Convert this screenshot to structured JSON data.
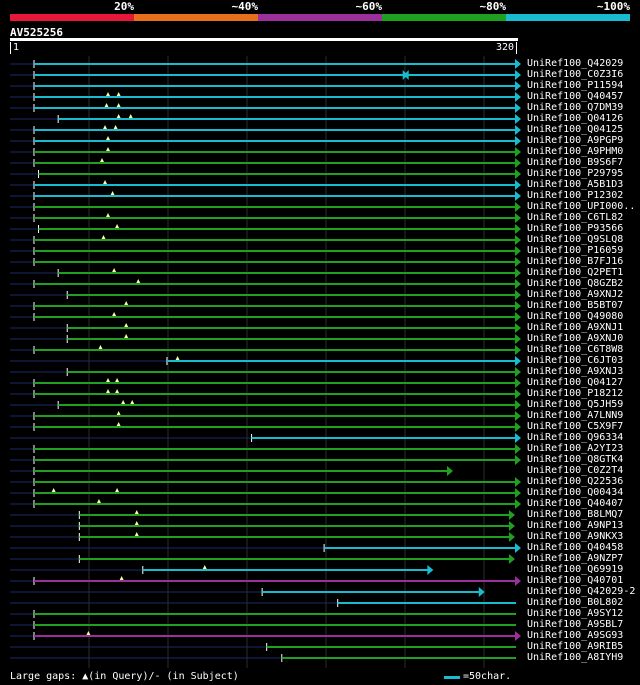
{
  "legend": {
    "labels": [
      "20%",
      "~40%",
      "~60%",
      "~80%",
      "~100%"
    ],
    "colors": [
      "#e5183a",
      "#e8701c",
      "#9b2f9c",
      "#20a020",
      "#17bcd0"
    ]
  },
  "query": {
    "name": "AV525256",
    "start_label": "1",
    "end_label": "320",
    "length": 320
  },
  "colors": {
    "cyan": "#17bcd0",
    "green": "#20a020",
    "purple": "#9b2f9c",
    "gap": "#1b2a66",
    "grid": "#2b2b2b",
    "marker": "#fff9a0"
  },
  "hits": [
    {
      "label": "UniRef100_Q42029",
      "color": "cyan",
      "q_start": 1,
      "end": 320,
      "dots": [],
      "arrow": true
    },
    {
      "label": "UniRef100_C0Z3I6",
      "color": "cyan",
      "q_start": 1,
      "end": 320,
      "dots": [],
      "arrow": true,
      "extra": "double-arrow"
    },
    {
      "label": "UniRef100_P11594",
      "color": "cyan",
      "q_start": 1,
      "end": 320,
      "dots": [],
      "arrow": true
    },
    {
      "label": "UniRef100_Q40457",
      "color": "cyan",
      "q_start": 1,
      "end": 320,
      "dots": [
        50,
        57
      ],
      "arrow": true
    },
    {
      "label": "UniRef100_Q7DM39",
      "color": "cyan",
      "q_start": 1,
      "end": 320,
      "dots": [
        49,
        57
      ],
      "arrow": true
    },
    {
      "label": "UniRef100_Q04126",
      "color": "cyan",
      "q_start": 17,
      "end": 320,
      "dots": [
        57,
        65
      ],
      "arrow": true
    },
    {
      "label": "UniRef100_Q04125",
      "color": "cyan",
      "q_start": 1,
      "end": 320,
      "dots": [
        48,
        55
      ],
      "arrow": true
    },
    {
      "label": "UniRef100_A9PGP9",
      "color": "cyan",
      "q_start": 1,
      "end": 320,
      "dots": [
        50
      ],
      "arrow": true
    },
    {
      "label": "UniRef100_A9PHM0",
      "color": "green",
      "q_start": 1,
      "end": 320,
      "dots": [
        50
      ],
      "arrow": true
    },
    {
      "label": "UniRef100_B9S6F7",
      "color": "green",
      "q_start": 1,
      "end": 320,
      "dots": [
        46
      ],
      "arrow": true
    },
    {
      "label": "UniRef100_P29795",
      "color": "green",
      "q_start": 4,
      "end": 320,
      "dots": [],
      "arrow": true
    },
    {
      "label": "UniRef100_A5B1D3",
      "color": "cyan",
      "q_start": 1,
      "end": 320,
      "dots": [
        48
      ],
      "arrow": true
    },
    {
      "label": "UniRef100_P12302",
      "color": "cyan",
      "q_start": 1,
      "end": 320,
      "dots": [
        53
      ],
      "arrow": true
    },
    {
      "label": "UniRef100_UPI000..",
      "color": "green",
      "q_start": 1,
      "end": 320,
      "dots": [],
      "arrow": true
    },
    {
      "label": "UniRef100_C6TL82",
      "color": "green",
      "q_start": 1,
      "end": 320,
      "dots": [
        50
      ],
      "arrow": true
    },
    {
      "label": "UniRef100_P93566",
      "color": "green",
      "q_start": 4,
      "end": 320,
      "dots": [
        56
      ],
      "arrow": true
    },
    {
      "label": "UniRef100_Q9SLQ8",
      "color": "green",
      "q_start": 1,
      "end": 320,
      "dots": [
        47
      ],
      "arrow": true
    },
    {
      "label": "UniRef100_P16059",
      "color": "green",
      "q_start": 1,
      "end": 320,
      "dots": [],
      "arrow": true
    },
    {
      "label": "UniRef100_B7FJ16",
      "color": "green",
      "q_start": 1,
      "end": 320,
      "dots": [],
      "arrow": true
    },
    {
      "label": "UniRef100_Q2PET1",
      "color": "green",
      "q_start": 17,
      "end": 320,
      "dots": [
        54
      ],
      "arrow": true
    },
    {
      "label": "UniRef100_Q8GZB2",
      "color": "green",
      "q_start": 1,
      "end": 320,
      "dots": [
        70
      ],
      "arrow": true
    },
    {
      "label": "UniRef100_A9XNJ2",
      "color": "green",
      "q_start": 23,
      "end": 320,
      "dots": [],
      "arrow": true
    },
    {
      "label": "UniRef100_B5BT07",
      "color": "green",
      "q_start": 1,
      "end": 320,
      "dots": [
        62
      ],
      "arrow": true
    },
    {
      "label": "UniRef100_Q49080",
      "color": "green",
      "q_start": 1,
      "end": 320,
      "dots": [
        54
      ],
      "arrow": true
    },
    {
      "label": "UniRef100_A9XNJ1",
      "color": "green",
      "q_start": 23,
      "end": 320,
      "dots": [
        62
      ],
      "arrow": true
    },
    {
      "label": "UniRef100_A9XNJ0",
      "color": "green",
      "q_start": 23,
      "end": 320,
      "dots": [
        62
      ],
      "arrow": true
    },
    {
      "label": "UniRef100_C6T8W8",
      "color": "green",
      "q_start": 1,
      "end": 320,
      "dots": [
        45
      ],
      "arrow": true
    },
    {
      "label": "UniRef100_C6JT03",
      "color": "cyan",
      "q_start": 89,
      "end": 320,
      "dots": [
        96
      ],
      "arrow": true
    },
    {
      "label": "UniRef100_A9XNJ3",
      "color": "green",
      "q_start": 23,
      "end": 320,
      "dots": [],
      "arrow": true
    },
    {
      "label": "UniRef100_Q04127",
      "color": "green",
      "q_start": 1,
      "end": 320,
      "dots": [
        50,
        56
      ],
      "arrow": true
    },
    {
      "label": "UniRef100_P18212",
      "color": "green",
      "q_start": 1,
      "end": 320,
      "dots": [
        50,
        56
      ],
      "arrow": true
    },
    {
      "label": "UniRef100_Q5JH59",
      "color": "green",
      "q_start": 17,
      "end": 320,
      "dots": [
        60,
        66
      ],
      "arrow": true
    },
    {
      "label": "UniRef100_A7LNN9",
      "color": "green",
      "q_start": 1,
      "end": 320,
      "dots": [
        57
      ],
      "arrow": true
    },
    {
      "label": "UniRef100_C5X9F7",
      "color": "green",
      "q_start": 1,
      "end": 320,
      "dots": [
        57
      ],
      "arrow": true
    },
    {
      "label": "UniRef100_Q96334",
      "color": "cyan",
      "q_start": 145,
      "end": 320,
      "dots": [],
      "arrow": true
    },
    {
      "label": "UniRef100_A2YI23",
      "color": "green",
      "q_start": 1,
      "end": 320,
      "dots": [],
      "arrow": true
    },
    {
      "label": "UniRef100_Q8GTK4",
      "color": "green",
      "q_start": 1,
      "end": 320,
      "dots": [],
      "arrow": true
    },
    {
      "label": "UniRef100_C0Z2T4",
      "color": "green",
      "q_start": 1,
      "end": 275,
      "dots": [],
      "arrow": true
    },
    {
      "label": "UniRef100_Q22536",
      "color": "green",
      "q_start": 1,
      "end": 320,
      "dots": [],
      "arrow": true
    },
    {
      "label": "UniRef100_Q00434",
      "color": "green",
      "q_start": 1,
      "end": 320,
      "dots": [
        14,
        56
      ],
      "arrow": true
    },
    {
      "label": "UniRef100_Q40407",
      "color": "green",
      "q_start": 1,
      "end": 320,
      "dots": [
        44
      ],
      "arrow": true
    },
    {
      "label": "UniRef100_B8LMQ7",
      "color": "green",
      "q_start": 31,
      "end": 316,
      "dots": [
        69
      ],
      "arrow": true
    },
    {
      "label": "UniRef100_A9NP13",
      "color": "green",
      "q_start": 31,
      "end": 316,
      "dots": [
        69
      ],
      "arrow": true
    },
    {
      "label": "UniRef100_A9NKX3",
      "color": "green",
      "q_start": 31,
      "end": 316,
      "dots": [
        69
      ],
      "arrow": true
    },
    {
      "label": "UniRef100_Q40458",
      "color": "cyan",
      "q_start": 193,
      "end": 320,
      "dots": [],
      "arrow": true
    },
    {
      "label": "UniRef100_A9NZP7",
      "color": "green",
      "q_start": 31,
      "end": 316,
      "dots": [],
      "arrow": true
    },
    {
      "label": "UniRef100_Q69919",
      "color": "cyan",
      "q_start": 73,
      "end": 262,
      "dots": [
        114
      ],
      "arrow": true
    },
    {
      "label": "UniRef100_Q40701",
      "color": "purple",
      "q_start": 1,
      "end": 320,
      "dots": [
        59
      ],
      "arrow": true
    },
    {
      "label": "UniRef100_Q42029-2",
      "color": "cyan",
      "q_start": 152,
      "end": 296,
      "dots": [],
      "arrow": true
    },
    {
      "label": "UniRef100_B0L802",
      "color": "cyan",
      "q_start": 202,
      "end": 320,
      "dots": [],
      "arrow": false
    },
    {
      "label": "UniRef100_A9SY12",
      "color": "green",
      "q_start": 1,
      "end": 320,
      "dots": [],
      "arrow": false
    },
    {
      "label": "UniRef100_A9SBL7",
      "color": "green",
      "q_start": 1,
      "end": 320,
      "dots": [],
      "arrow": false
    },
    {
      "label": "UniRef100_A9SG93",
      "color": "purple",
      "q_start": 1,
      "end": 320,
      "dots": [
        37
      ],
      "arrow": true
    },
    {
      "label": "UniRef100_A9RIB5",
      "color": "green",
      "q_start": 155,
      "end": 320,
      "dots": [],
      "arrow": false
    },
    {
      "label": "UniRef100_A8IYH9",
      "color": "green",
      "q_start": 165,
      "end": 320,
      "dots": [],
      "arrow": false
    }
  ],
  "footer": {
    "gaps_text": "Large gaps: ▲(in Query)/- (in Subject)",
    "scale_text": "=50char."
  }
}
